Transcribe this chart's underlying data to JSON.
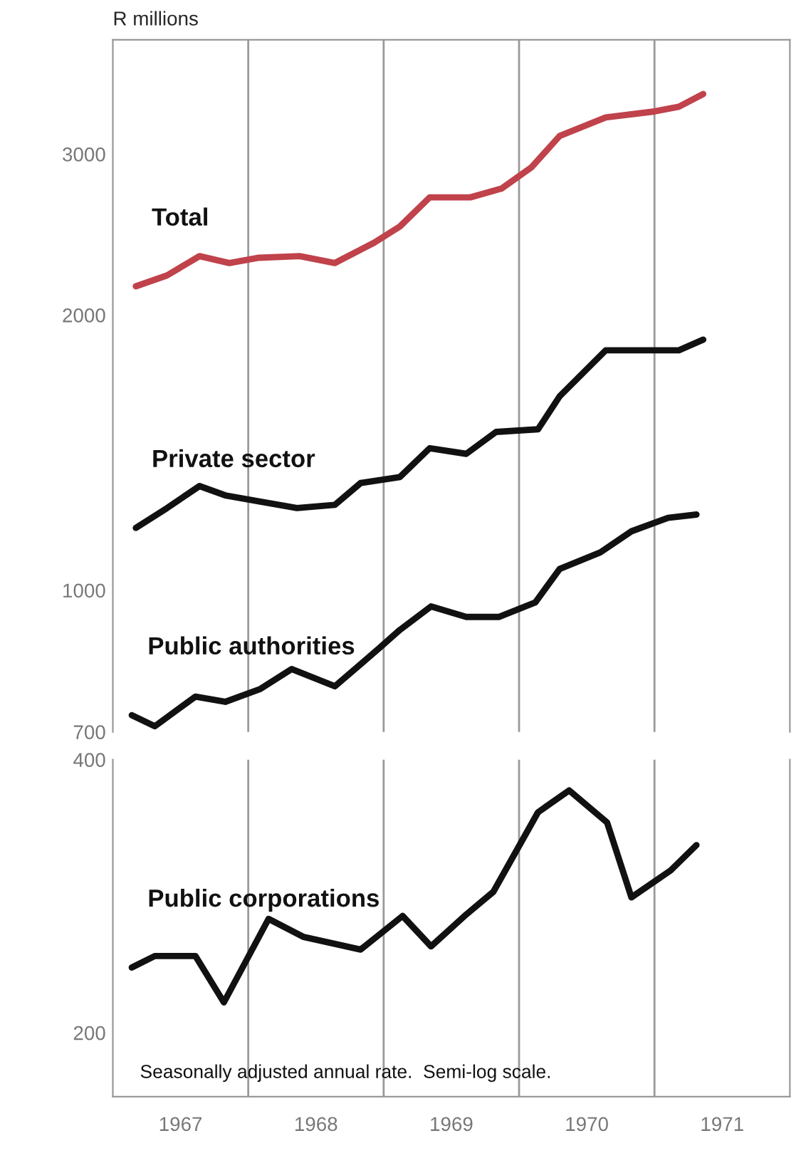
{
  "chart_data": [
    {
      "type": "line",
      "ylabel": "R millions",
      "log": true,
      "ylim": [
        700,
        4000
      ],
      "yticks": [
        700,
        1000,
        2000,
        3000
      ],
      "xlim": [
        1967,
        1972
      ],
      "tick_labels": "y",
      "grid": false,
      "legend": false,
      "line_style": "solid",
      "marker": "none",
      "ref_lines": [
        {
          "axis": "x",
          "value": 1968,
          "color": "#999999"
        },
        {
          "axis": "x",
          "value": 1969,
          "color": "#999999"
        },
        {
          "axis": "x",
          "value": 1970,
          "color": "#999999"
        },
        {
          "axis": "x",
          "value": 1971,
          "color": "#999999"
        }
      ],
      "series": [
        {
          "name": "Total",
          "color": "#c0424b",
          "x": [
            1967.17,
            1967.4,
            1967.64,
            1967.86,
            1968.07,
            1968.38,
            1968.64,
            1968.93,
            1969.12,
            1969.34,
            1969.64,
            1969.87,
            1970.09,
            1970.3,
            1970.64,
            1971.0,
            1971.18,
            1971.36
          ],
          "values": [
            2150,
            2210,
            2320,
            2280,
            2310,
            2320,
            2280,
            2400,
            2500,
            2690,
            2690,
            2750,
            2900,
            3140,
            3290,
            3340,
            3380,
            3490
          ]
        },
        {
          "name": "Private sector",
          "color": "#111111",
          "x": [
            1967.17,
            1967.4,
            1967.64,
            1967.83,
            1968.09,
            1968.36,
            1968.64,
            1968.83,
            1969.12,
            1969.34,
            1969.61,
            1969.83,
            1970.14,
            1970.3,
            1970.64,
            1971.0,
            1971.18,
            1971.36
          ],
          "values": [
            1170,
            1230,
            1300,
            1270,
            1250,
            1230,
            1240,
            1310,
            1330,
            1430,
            1410,
            1490,
            1500,
            1630,
            1830,
            1830,
            1830,
            1880
          ]
        },
        {
          "name": "Public authorities",
          "color": "#111111",
          "x": [
            1967.14,
            1967.31,
            1967.61,
            1967.83,
            1968.09,
            1968.32,
            1968.64,
            1968.97,
            1969.12,
            1969.35,
            1969.61,
            1969.85,
            1970.12,
            1970.3,
            1970.6,
            1970.83,
            1971.1,
            1971.31
          ],
          "values": [
            730,
            710,
            765,
            755,
            780,
            820,
            785,
            865,
            905,
            960,
            935,
            935,
            970,
            1055,
            1100,
            1160,
            1200,
            1210
          ]
        }
      ]
    },
    {
      "type": "line",
      "log": true,
      "ylim": [
        170,
        400
      ],
      "yticks": [
        200,
        400
      ],
      "xlim": [
        1967,
        1972
      ],
      "xticks": [
        {
          "value": 1967.5,
          "label": "1967"
        },
        {
          "value": 1968.5,
          "label": "1968"
        },
        {
          "value": 1969.5,
          "label": "1969"
        },
        {
          "value": 1970.5,
          "label": "1970"
        },
        {
          "value": 1971.5,
          "label": "1971"
        }
      ],
      "grid": false,
      "legend": false,
      "line_style": "solid",
      "marker": "none",
      "ref_lines": [
        {
          "axis": "x",
          "value": 1968,
          "color": "#999999"
        },
        {
          "axis": "x",
          "value": 1969,
          "color": "#999999"
        },
        {
          "axis": "x",
          "value": 1970,
          "color": "#999999"
        },
        {
          "axis": "x",
          "value": 1971,
          "color": "#999999"
        }
      ],
      "annotations": [
        "Seasonally adjusted annual rate.  Semi-log scale."
      ],
      "series": [
        {
          "name": "Public corporations",
          "color": "#111111",
          "x": [
            1967.14,
            1967.31,
            1967.61,
            1967.82,
            1968.15,
            1968.41,
            1968.83,
            1969.14,
            1969.35,
            1969.61,
            1969.81,
            1970.14,
            1970.37,
            1970.65,
            1970.83,
            1971.12,
            1971.31
          ],
          "values": [
            236,
            243,
            243,
            216,
            267,
            255,
            247,
            269,
            249,
            270,
            286,
            350,
            370,
            341,
            282,
            302,
            322
          ]
        }
      ]
    }
  ]
}
